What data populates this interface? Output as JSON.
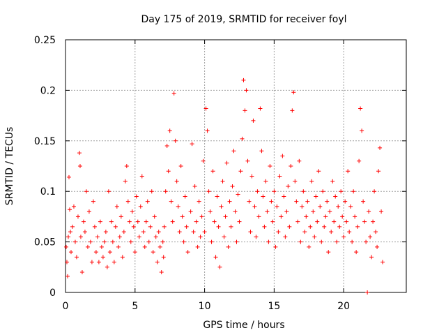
{
  "chart_data": {
    "type": "scatter",
    "title": "Day 175 of 2019, SRMTID for receiver foyl",
    "xlabel": "GPS time / hours",
    "ylabel": "SRMTID / TECUs",
    "xlim": [
      0,
      24.5
    ],
    "ylim": [
      0,
      0.25
    ],
    "x_ticks": [
      0,
      5,
      10,
      15,
      20
    ],
    "y_ticks": [
      0,
      0.05,
      0.1,
      0.15,
      0.2,
      0.25
    ],
    "x_tick_labels": [
      "0",
      "5",
      "10",
      "15",
      "20"
    ],
    "y_tick_labels": [
      "0",
      "0.05",
      "0.1",
      "0.15",
      "0.2",
      "0.25"
    ],
    "grid": true,
    "marker": "+",
    "color": "#ff0000",
    "series": [
      {
        "name": "SRMTID",
        "points": [
          [
            0.05,
            0.045
          ],
          [
            0.1,
            0.03
          ],
          [
            0.15,
            0.016
          ],
          [
            0.2,
            0.055
          ],
          [
            0.25,
            0.114
          ],
          [
            0.3,
            0.082
          ],
          [
            0.35,
            0.06
          ],
          [
            0.4,
            0.04
          ],
          [
            0.5,
            0.065
          ],
          [
            0.6,
            0.085
          ],
          [
            0.7,
            0.05
          ],
          [
            0.8,
            0.035
          ],
          [
            0.9,
            0.075
          ],
          [
            1.0,
            0.138
          ],
          [
            1.05,
            0.125
          ],
          [
            1.1,
            0.055
          ],
          [
            1.2,
            0.02
          ],
          [
            1.3,
            0.07
          ],
          [
            1.4,
            0.06
          ],
          [
            1.5,
            0.1
          ],
          [
            1.6,
            0.045
          ],
          [
            1.7,
            0.08
          ],
          [
            1.8,
            0.05
          ],
          [
            1.9,
            0.03
          ],
          [
            2.0,
            0.09
          ],
          [
            2.1,
            0.065
          ],
          [
            2.2,
            0.04
          ],
          [
            2.3,
            0.055
          ],
          [
            2.4,
            0.03
          ],
          [
            2.5,
            0.07
          ],
          [
            2.6,
            0.045
          ],
          [
            2.7,
            0.035
          ],
          [
            2.8,
            0.05
          ],
          [
            2.9,
            0.06
          ],
          [
            3.0,
            0.025
          ],
          [
            3.1,
            0.1
          ],
          [
            3.2,
            0.04
          ],
          [
            3.3,
            0.07
          ],
          [
            3.4,
            0.05
          ],
          [
            3.5,
            0.03
          ],
          [
            3.6,
            0.065
          ],
          [
            3.7,
            0.085
          ],
          [
            3.8,
            0.045
          ],
          [
            3.9,
            0.055
          ],
          [
            4.0,
            0.075
          ],
          [
            4.1,
            0.035
          ],
          [
            4.2,
            0.06
          ],
          [
            4.3,
            0.11
          ],
          [
            4.4,
            0.125
          ],
          [
            4.5,
            0.09
          ],
          [
            4.6,
            0.07
          ],
          [
            4.7,
            0.05
          ],
          [
            4.8,
            0.08
          ],
          [
            4.9,
            0.065
          ],
          [
            5.0,
            0.04
          ],
          [
            5.1,
            0.095
          ],
          [
            5.2,
            0.07
          ],
          [
            5.3,
            0.055
          ],
          [
            5.4,
            0.085
          ],
          [
            5.5,
            0.115
          ],
          [
            5.6,
            0.06
          ],
          [
            5.7,
            0.045
          ],
          [
            5.8,
            0.07
          ],
          [
            5.9,
            0.09
          ],
          [
            6.0,
            0.05
          ],
          [
            6.1,
            0.065
          ],
          [
            6.2,
            0.1
          ],
          [
            6.3,
            0.04
          ],
          [
            6.4,
            0.075
          ],
          [
            6.5,
            0.055
          ],
          [
            6.6,
            0.03
          ],
          [
            6.7,
            0.06
          ],
          [
            6.8,
            0.045
          ],
          [
            6.9,
            0.02
          ],
          [
            7.0,
            0.05
          ],
          [
            7.05,
            0.035
          ],
          [
            7.1,
            0.065
          ],
          [
            7.2,
            0.1
          ],
          [
            7.3,
            0.145
          ],
          [
            7.4,
            0.12
          ],
          [
            7.5,
            0.16
          ],
          [
            7.6,
            0.09
          ],
          [
            7.7,
            0.07
          ],
          [
            7.8,
            0.197
          ],
          [
            7.9,
            0.15
          ],
          [
            8.0,
            0.11
          ],
          [
            8.1,
            0.085
          ],
          [
            8.2,
            0.06
          ],
          [
            8.3,
            0.125
          ],
          [
            8.4,
            0.075
          ],
          [
            8.5,
            0.05
          ],
          [
            8.6,
            0.095
          ],
          [
            8.7,
            0.065
          ],
          [
            8.8,
            0.04
          ],
          [
            9.0,
            0.08
          ],
          [
            9.1,
            0.147
          ],
          [
            9.2,
            0.06
          ],
          [
            9.3,
            0.105
          ],
          [
            9.4,
            0.07
          ],
          [
            9.5,
            0.045
          ],
          [
            9.6,
            0.09
          ],
          [
            9.7,
            0.055
          ],
          [
            9.8,
            0.075
          ],
          [
            9.9,
            0.13
          ],
          [
            10.0,
            0.06
          ],
          [
            10.1,
            0.182
          ],
          [
            10.2,
            0.16
          ],
          [
            10.3,
            0.1
          ],
          [
            10.4,
            0.08
          ],
          [
            10.5,
            0.05
          ],
          [
            10.6,
            0.12
          ],
          [
            10.7,
            0.07
          ],
          [
            10.8,
            0.035
          ],
          [
            10.9,
            0.095
          ],
          [
            11.0,
            0.065
          ],
          [
            11.1,
            0.025
          ],
          [
            11.2,
            0.085
          ],
          [
            11.3,
            0.11
          ],
          [
            11.4,
            0.055
          ],
          [
            11.5,
            0.075
          ],
          [
            11.6,
            0.128
          ],
          [
            11.7,
            0.045
          ],
          [
            11.8,
            0.09
          ],
          [
            11.9,
            0.065
          ],
          [
            12.0,
            0.105
          ],
          [
            12.1,
            0.14
          ],
          [
            12.2,
            0.08
          ],
          [
            12.3,
            0.05
          ],
          [
            12.4,
            0.097
          ],
          [
            12.5,
            0.07
          ],
          [
            12.6,
            0.12
          ],
          [
            12.7,
            0.152
          ],
          [
            12.8,
            0.21
          ],
          [
            12.9,
            0.18
          ],
          [
            13.0,
            0.2
          ],
          [
            13.1,
            0.13
          ],
          [
            13.2,
            0.09
          ],
          [
            13.3,
            0.06
          ],
          [
            13.4,
            0.115
          ],
          [
            13.5,
            0.17
          ],
          [
            13.6,
            0.085
          ],
          [
            13.7,
            0.055
          ],
          [
            13.8,
            0.1
          ],
          [
            13.9,
            0.075
          ],
          [
            14.0,
            0.182
          ],
          [
            14.1,
            0.14
          ],
          [
            14.2,
            0.095
          ],
          [
            14.3,
            0.065
          ],
          [
            14.4,
            0.11
          ],
          [
            14.5,
            0.08
          ],
          [
            14.6,
            0.05
          ],
          [
            14.7,
            0.125
          ],
          [
            14.8,
            0.09
          ],
          [
            14.9,
            0.07
          ],
          [
            15.0,
            0.1
          ],
          [
            15.1,
            0.045
          ],
          [
            15.2,
            0.085
          ],
          [
            15.3,
            0.06
          ],
          [
            15.4,
            0.115
          ],
          [
            15.5,
            0.075
          ],
          [
            15.6,
            0.135
          ],
          [
            15.7,
            0.095
          ],
          [
            15.8,
            0.055
          ],
          [
            15.9,
            0.08
          ],
          [
            16.0,
            0.105
          ],
          [
            16.1,
            0.065
          ],
          [
            16.2,
            0.125
          ],
          [
            16.3,
            0.18
          ],
          [
            16.4,
            0.198
          ],
          [
            16.5,
            0.11
          ],
          [
            16.6,
            0.09
          ],
          [
            16.7,
            0.07
          ],
          [
            16.8,
            0.13
          ],
          [
            16.9,
            0.05
          ],
          [
            17.0,
            0.085
          ],
          [
            17.1,
            0.1
          ],
          [
            17.2,
            0.06
          ],
          [
            17.3,
            0.075
          ],
          [
            17.4,
            0.09
          ],
          [
            17.5,
            0.045
          ],
          [
            17.6,
            0.065
          ],
          [
            17.7,
            0.11
          ],
          [
            17.8,
            0.08
          ],
          [
            17.9,
            0.055
          ],
          [
            18.0,
            0.095
          ],
          [
            18.1,
            0.07
          ],
          [
            18.2,
            0.12
          ],
          [
            18.3,
            0.085
          ],
          [
            18.4,
            0.05
          ],
          [
            18.5,
            0.1
          ],
          [
            18.6,
            0.065
          ],
          [
            18.7,
            0.075
          ],
          [
            18.8,
            0.09
          ],
          [
            18.9,
            0.04
          ],
          [
            19.0,
            0.08
          ],
          [
            19.1,
            0.06
          ],
          [
            19.2,
            0.11
          ],
          [
            19.3,
            0.07
          ],
          [
            19.4,
            0.095
          ],
          [
            19.5,
            0.05
          ],
          [
            19.6,
            0.085
          ],
          [
            19.7,
            0.065
          ],
          [
            19.8,
            0.1
          ],
          [
            19.9,
            0.075
          ],
          [
            20.0,
            0.055
          ],
          [
            20.1,
            0.09
          ],
          [
            20.2,
            0.07
          ],
          [
            20.3,
            0.12
          ],
          [
            20.4,
            0.06
          ],
          [
            20.5,
            0.085
          ],
          [
            20.6,
            0.05
          ],
          [
            20.7,
            0.1
          ],
          [
            20.8,
            0.075
          ],
          [
            20.9,
            0.04
          ],
          [
            21.0,
            0.065
          ],
          [
            21.1,
            0.13
          ],
          [
            21.2,
            0.182
          ],
          [
            21.3,
            0.16
          ],
          [
            21.4,
            0.09
          ],
          [
            21.5,
            0.07
          ],
          [
            21.6,
            0.05
          ],
          [
            21.7,
            0.0
          ],
          [
            21.8,
            0.08
          ],
          [
            21.9,
            0.055
          ],
          [
            22.0,
            0.035
          ],
          [
            22.1,
            0.07
          ],
          [
            22.2,
            0.1
          ],
          [
            22.3,
            0.06
          ],
          [
            22.4,
            0.045
          ],
          [
            22.5,
            0.12
          ],
          [
            22.6,
            0.143
          ],
          [
            22.7,
            0.08
          ],
          [
            22.8,
            0.03
          ]
        ]
      }
    ]
  }
}
